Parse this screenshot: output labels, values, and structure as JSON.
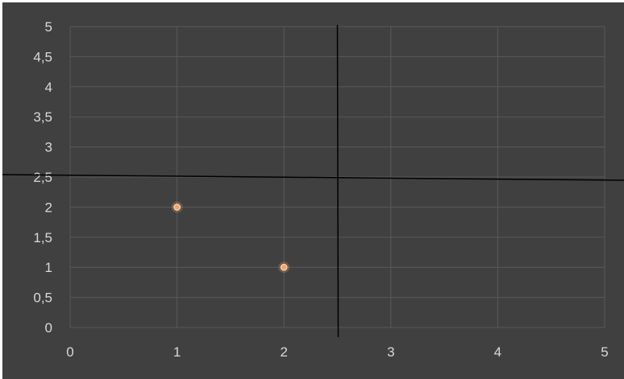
{
  "chart_data": {
    "type": "scatter",
    "title": "",
    "xlabel": "",
    "ylabel": "",
    "xlim": [
      0,
      5
    ],
    "ylim": [
      0,
      5
    ],
    "x_ticks": [
      "0",
      "1",
      "2",
      "3",
      "4",
      "5"
    ],
    "y_ticks": [
      "0",
      "0,5",
      "1",
      "1,5",
      "2",
      "2,5",
      "3",
      "3,5",
      "4",
      "4,5",
      "5"
    ],
    "grid": true,
    "legend": "none",
    "series": [
      {
        "points": [
          {
            "x": 1,
            "y": 2
          },
          {
            "x": 2,
            "y": 1
          }
        ]
      }
    ],
    "reference_lines": {
      "vertical_x": 2.5,
      "horizontal_y": 2.5
    },
    "colors": {
      "background": "#404040",
      "grid": "#595959",
      "tick_label": "#d9d9d9",
      "marker": "#f4a46a",
      "reference_line": "#000000"
    }
  }
}
